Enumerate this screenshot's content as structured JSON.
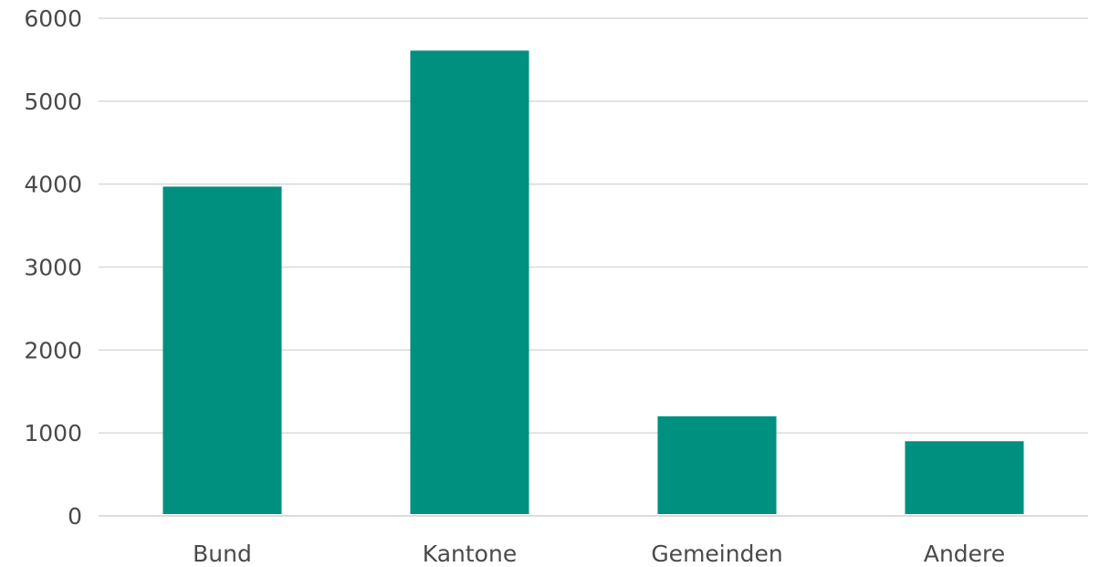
{
  "chart_data": {
    "type": "bar",
    "categories": [
      "Bund",
      "Kantone",
      "Gemeinden",
      "Andere"
    ],
    "values": [
      3970,
      5610,
      1200,
      900
    ],
    "ylim": [
      0,
      6000
    ],
    "yticks": [
      0,
      1000,
      2000,
      3000,
      4000,
      5000,
      6000
    ],
    "grid": true,
    "colors": {
      "bar": "#009080",
      "grid": "#d9d9d9",
      "text": "#4a4a4a"
    }
  }
}
